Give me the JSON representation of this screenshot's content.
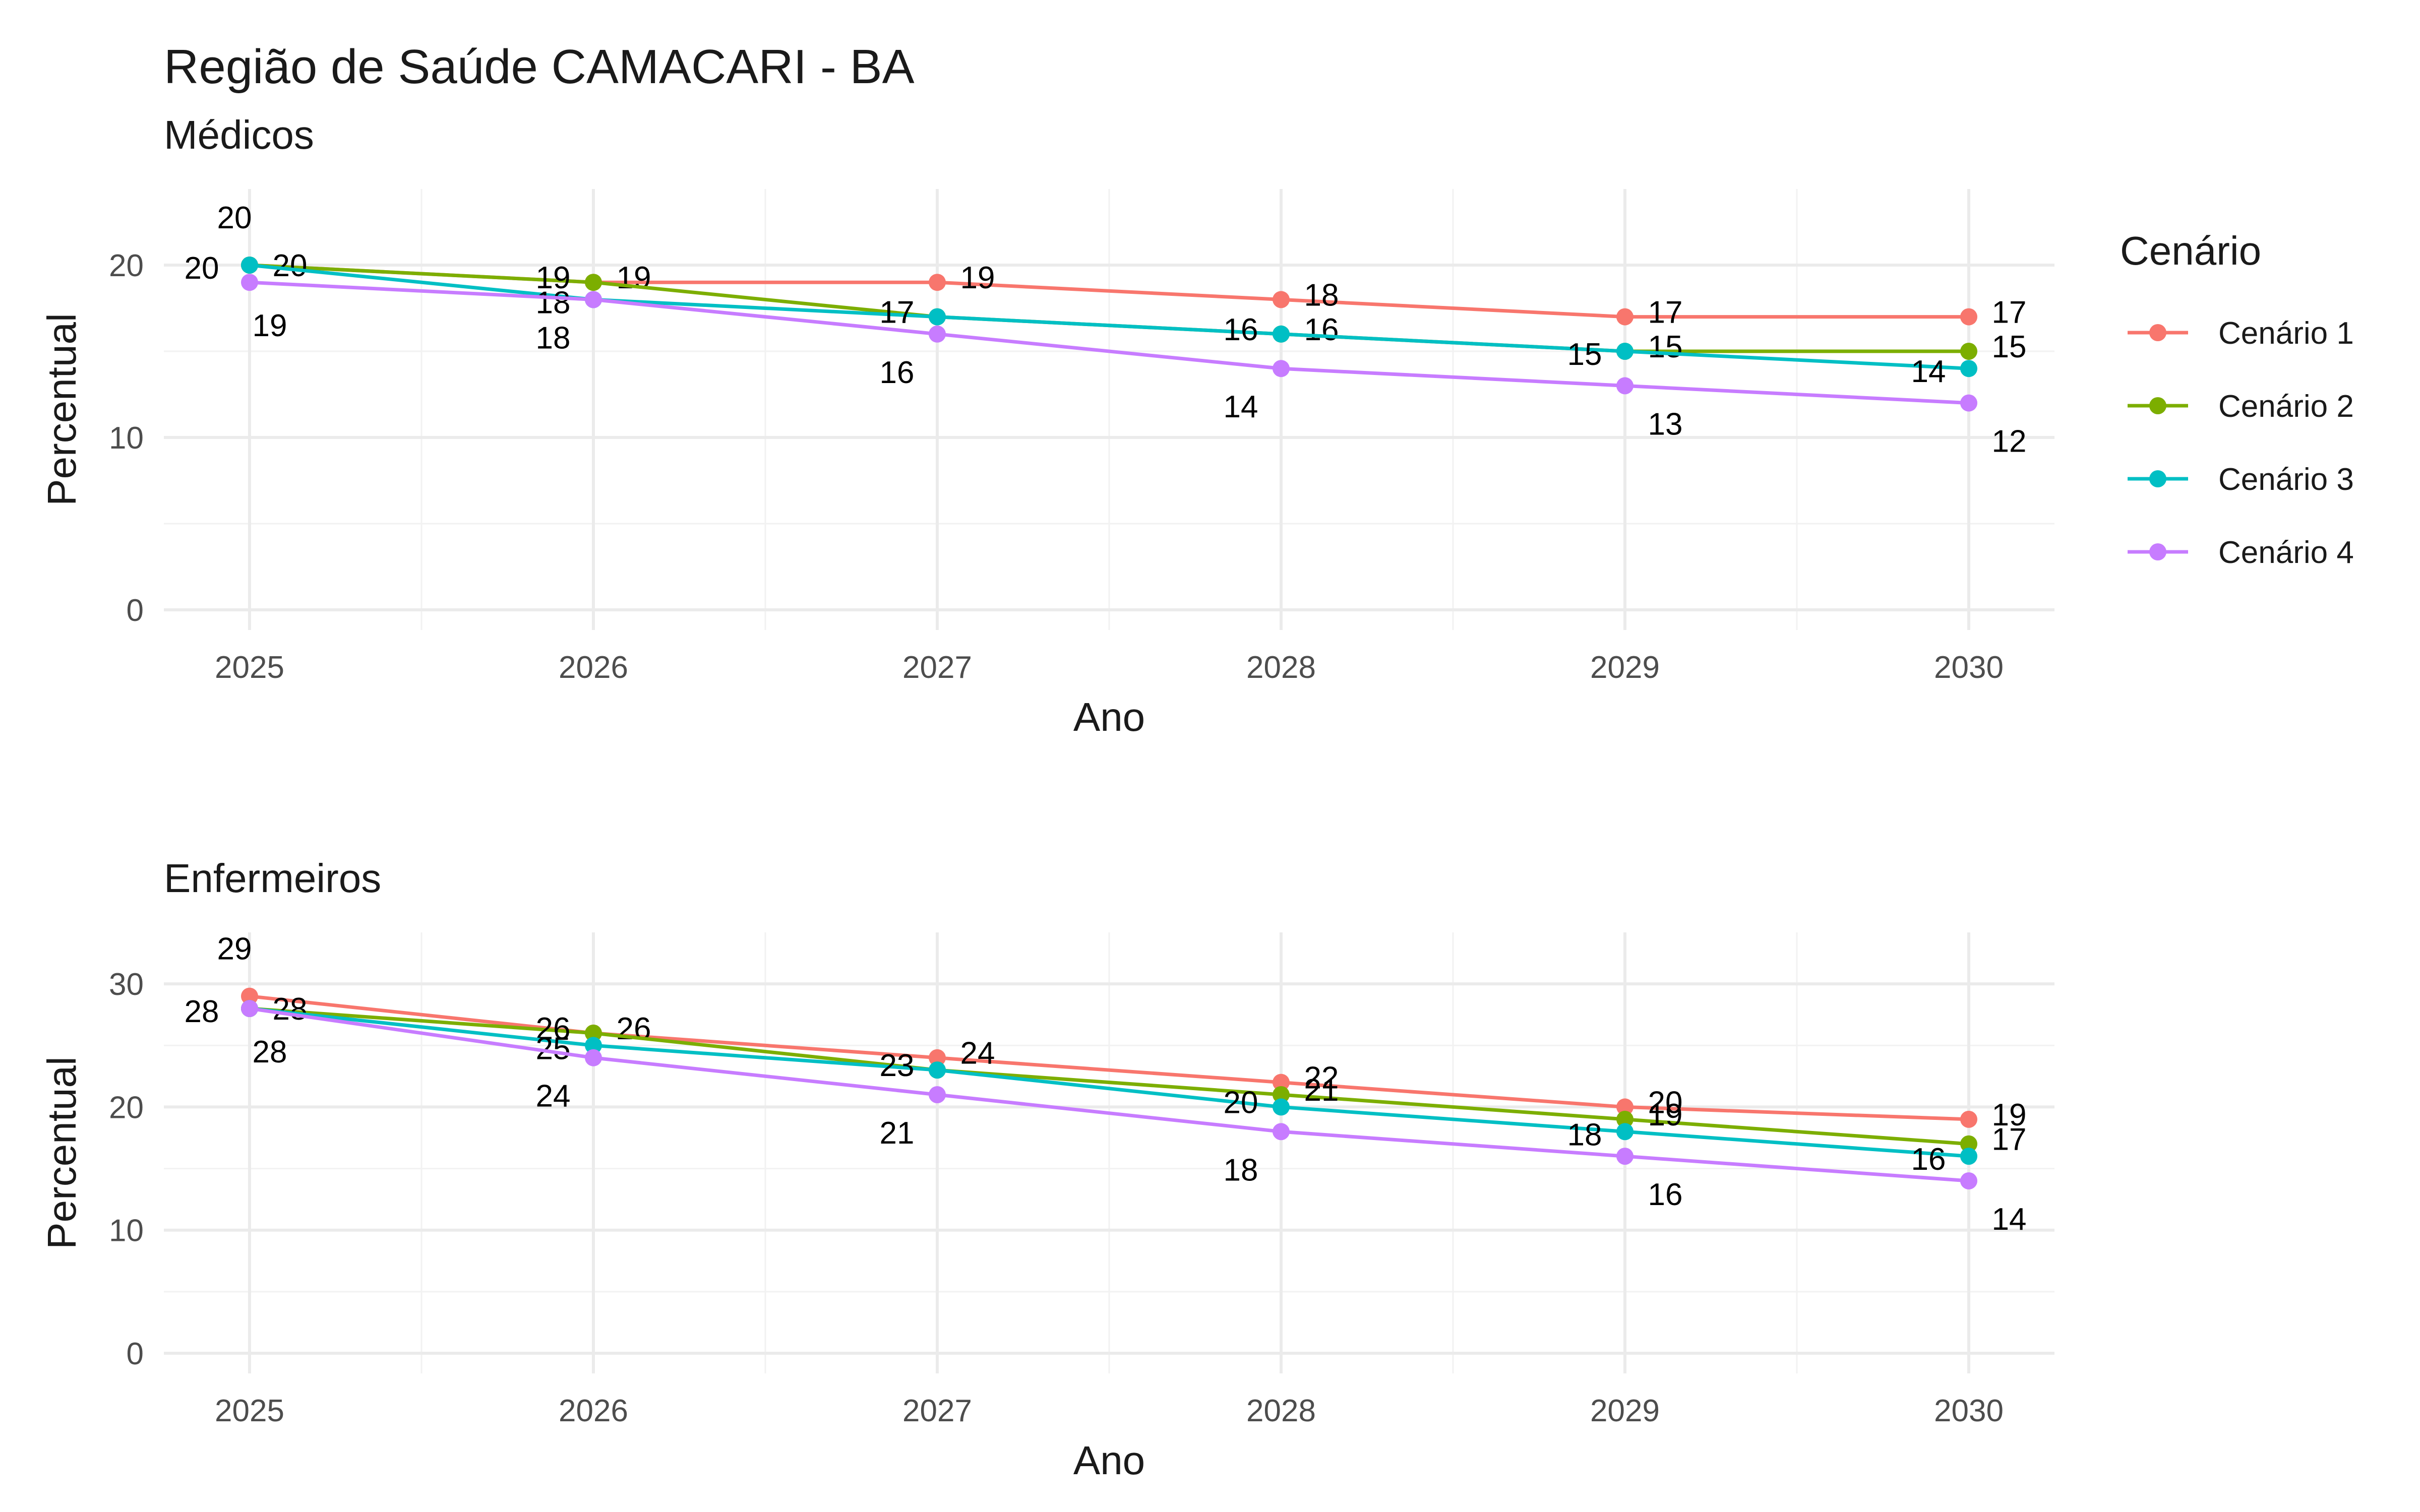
{
  "chart_data": {
    "type": "line",
    "title": "Região de Saúde CAMACARI - BA",
    "legend": {
      "title": "Cenário",
      "placement": "right",
      "entries": [
        "Cenário 1",
        "Cenário 2",
        "Cenário 3",
        "Cenário 4"
      ]
    },
    "colors": {
      "Cenário 1": "#F8766D",
      "Cenário 2": "#7CAE00",
      "Cenário 3": "#00BFC4",
      "Cenário 4": "#C77CFF"
    },
    "panels": [
      {
        "subtitle": "Médicos",
        "xlabel": "Ano",
        "ylabel": "Percentual",
        "x": [
          2025,
          2026,
          2027,
          2028,
          2029,
          2030
        ],
        "xticks": [
          "2025",
          "2026",
          "2027",
          "2028",
          "2029",
          "2030"
        ],
        "yticks": [
          "0",
          "10",
          "20"
        ],
        "ylim": [
          0,
          25
        ],
        "grid": true,
        "series": [
          {
            "name": "Cenário 1",
            "values": [
              20,
              19,
              19,
              18,
              17,
              17
            ]
          },
          {
            "name": "Cenário 2",
            "values": [
              20,
              19,
              17,
              16,
              15,
              15
            ]
          },
          {
            "name": "Cenário 3",
            "values": [
              20,
              18,
              17,
              16,
              15,
              14
            ]
          },
          {
            "name": "Cenário 4",
            "values": [
              19,
              18,
              16,
              14,
              13,
              12
            ]
          }
        ]
      },
      {
        "subtitle": "Enfermeiros",
        "xlabel": "Ano",
        "ylabel": "Percentual",
        "x": [
          2025,
          2026,
          2027,
          2028,
          2029,
          2030
        ],
        "xticks": [
          "2025",
          "2026",
          "2027",
          "2028",
          "2029",
          "2030"
        ],
        "yticks": [
          "0",
          "10",
          "20",
          "30"
        ],
        "ylim": [
          0,
          35
        ],
        "grid": true,
        "series": [
          {
            "name": "Cenário 1",
            "values": [
              29,
              26,
              24,
              22,
              20,
              19
            ]
          },
          {
            "name": "Cenário 2",
            "values": [
              28,
              26,
              23,
              21,
              19,
              17
            ]
          },
          {
            "name": "Cenário 3",
            "values": [
              28,
              25,
              23,
              20,
              18,
              16
            ]
          },
          {
            "name": "Cenário 4",
            "values": [
              28,
              24,
              21,
              18,
              16,
              14
            ]
          }
        ]
      }
    ]
  }
}
